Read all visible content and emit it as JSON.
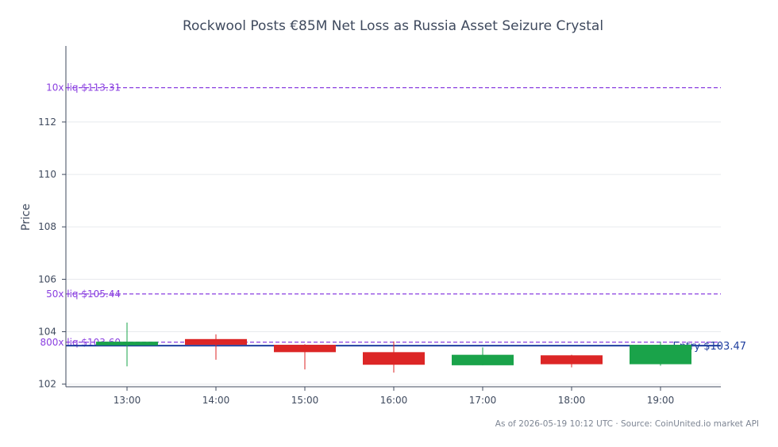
{
  "chart_data": {
    "type": "candlestick",
    "title": "Rockwool Posts €85M Net Loss as Russia Asset Seizure Crystal",
    "ylabel": "Price",
    "ylim": [
      101.9,
      114.9
    ],
    "yticks": [
      102,
      104,
      106,
      108,
      110,
      112
    ],
    "grid": true,
    "categories": [
      "13:00",
      "14:00",
      "15:00",
      "16:00",
      "17:00",
      "18:00",
      "19:00"
    ],
    "candles": [
      {
        "x": "13:00",
        "open": 103.48,
        "high": 104.35,
        "low": 102.68,
        "close": 103.62
      },
      {
        "x": "14:00",
        "open": 103.72,
        "high": 103.9,
        "low": 102.93,
        "close": 103.5
      },
      {
        "x": "15:00",
        "open": 103.5,
        "high": 103.52,
        "low": 102.56,
        "close": 103.22
      },
      {
        "x": "16:00",
        "open": 103.22,
        "high": 103.63,
        "low": 102.44,
        "close": 102.74
      },
      {
        "x": "17:00",
        "open": 102.72,
        "high": 103.4,
        "low": 102.72,
        "close": 103.12
      },
      {
        "x": "18:00",
        "open": 103.1,
        "high": 103.12,
        "low": 102.64,
        "close": 102.76
      },
      {
        "x": "19:00",
        "open": 102.76,
        "high": 103.62,
        "low": 102.7,
        "close": 103.5
      }
    ],
    "colors": {
      "up": "#1aa34a",
      "down": "#dc2626",
      "entry": "#1f3f9f",
      "liq": "#8a3fe0"
    },
    "entry": {
      "label": "Entry $103.47",
      "value": 103.47
    },
    "liquidation_lines": [
      {
        "label": "10x liq $113.31",
        "value": 113.31
      },
      {
        "label": "50x liq $105.44",
        "value": 105.44
      },
      {
        "label": "800x liq $103.60",
        "value": 103.6
      }
    ]
  },
  "footer": "As of 2026-05-19 10:12 UTC · Source: CoinUnited.io market API"
}
